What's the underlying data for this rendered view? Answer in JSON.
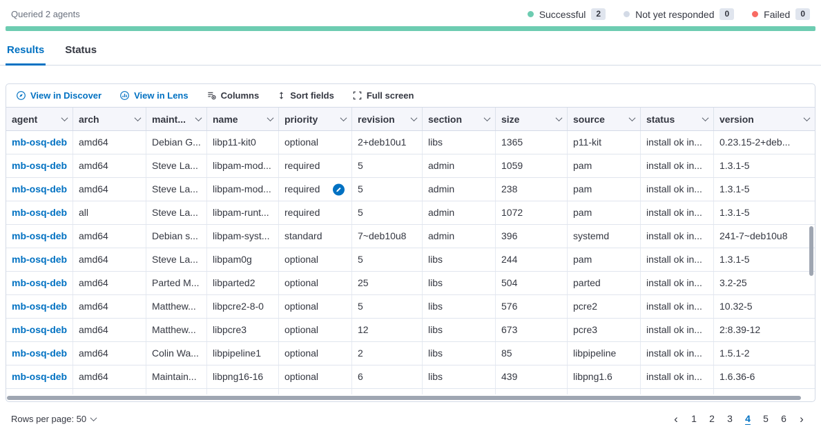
{
  "header": {
    "queried_text": "Queried 2 agents",
    "progress_color": "#6DCCB1",
    "legend": [
      {
        "label": "Successful",
        "count": "2",
        "color": "#6DCCB1"
      },
      {
        "label": "Not yet responded",
        "count": "0",
        "color": "#D3DAE6"
      },
      {
        "label": "Failed",
        "count": "0",
        "color": "#F86B63"
      }
    ]
  },
  "tabs": [
    {
      "label": "Results",
      "active": true
    },
    {
      "label": "Status",
      "active": false
    }
  ],
  "toolbar": {
    "items": [
      {
        "label": "View in Discover",
        "icon": "discover-icon",
        "style": "link"
      },
      {
        "label": "View in Lens",
        "icon": "lens-icon",
        "style": "link"
      },
      {
        "label": "Columns",
        "icon": "columns-icon",
        "style": "default"
      },
      {
        "label": "Sort fields",
        "icon": "sort-icon",
        "style": "default"
      },
      {
        "label": "Full screen",
        "icon": "fullscreen-icon",
        "style": "default"
      }
    ]
  },
  "table": {
    "columns": [
      "agent",
      "arch",
      "maint...",
      "name",
      "priority",
      "revision",
      "section",
      "size",
      "source",
      "status",
      "version"
    ],
    "rows": [
      [
        "mb-osq-deb",
        "amd64",
        "Debian G...",
        "libp11-kit0",
        "optional",
        "2+deb10u1",
        "libs",
        "1365",
        "p11-kit",
        "install ok in...",
        "0.23.15-2+deb..."
      ],
      [
        "mb-osq-deb",
        "amd64",
        "Steve La...",
        "libpam-mod...",
        "required",
        "5",
        "admin",
        "1059",
        "pam",
        "install ok in...",
        "1.3.1-5"
      ],
      [
        "mb-osq-deb",
        "amd64",
        "Steve La...",
        "libpam-mod...",
        "required",
        "5",
        "admin",
        "238",
        "pam",
        "install ok in...",
        "1.3.1-5"
      ],
      [
        "mb-osq-deb",
        "all",
        "Steve La...",
        "libpam-runt...",
        "required",
        "5",
        "admin",
        "1072",
        "pam",
        "install ok in...",
        "1.3.1-5"
      ],
      [
        "mb-osq-deb",
        "amd64",
        "Debian s...",
        "libpam-syst...",
        "standard",
        "7~deb10u8",
        "admin",
        "396",
        "systemd",
        "install ok in...",
        "241-7~deb10u8"
      ],
      [
        "mb-osq-deb",
        "amd64",
        "Steve La...",
        "libpam0g",
        "optional",
        "5",
        "libs",
        "244",
        "pam",
        "install ok in...",
        "1.3.1-5"
      ],
      [
        "mb-osq-deb",
        "amd64",
        "Parted M...",
        "libparted2",
        "optional",
        "25",
        "libs",
        "504",
        "parted",
        "install ok in...",
        "3.2-25"
      ],
      [
        "mb-osq-deb",
        "amd64",
        "Matthew...",
        "libpcre2-8-0",
        "optional",
        "5",
        "libs",
        "576",
        "pcre2",
        "install ok in...",
        "10.32-5"
      ],
      [
        "mb-osq-deb",
        "amd64",
        "Matthew...",
        "libpcre3",
        "optional",
        "12",
        "libs",
        "673",
        "pcre3",
        "install ok in...",
        "2:8.39-12"
      ],
      [
        "mb-osq-deb",
        "amd64",
        "Colin Wa...",
        "libpipeline1",
        "optional",
        "2",
        "libs",
        "85",
        "libpipeline",
        "install ok in...",
        "1.5.1-2"
      ],
      [
        "mb-osq-deb",
        "amd64",
        "Maintain...",
        "libpng16-16",
        "optional",
        "6",
        "libs",
        "439",
        "libpng1.6",
        "install ok in...",
        "1.6.36-6"
      ]
    ],
    "edit_icon": {
      "row_index": 2,
      "col_index": 4
    }
  },
  "footer": {
    "rows_per_page_label": "Rows per page: 50",
    "pagination": {
      "prev": "‹",
      "next": "›",
      "pages": [
        "1",
        "2",
        "3",
        "4",
        "5",
        "6"
      ],
      "active": "4"
    }
  }
}
